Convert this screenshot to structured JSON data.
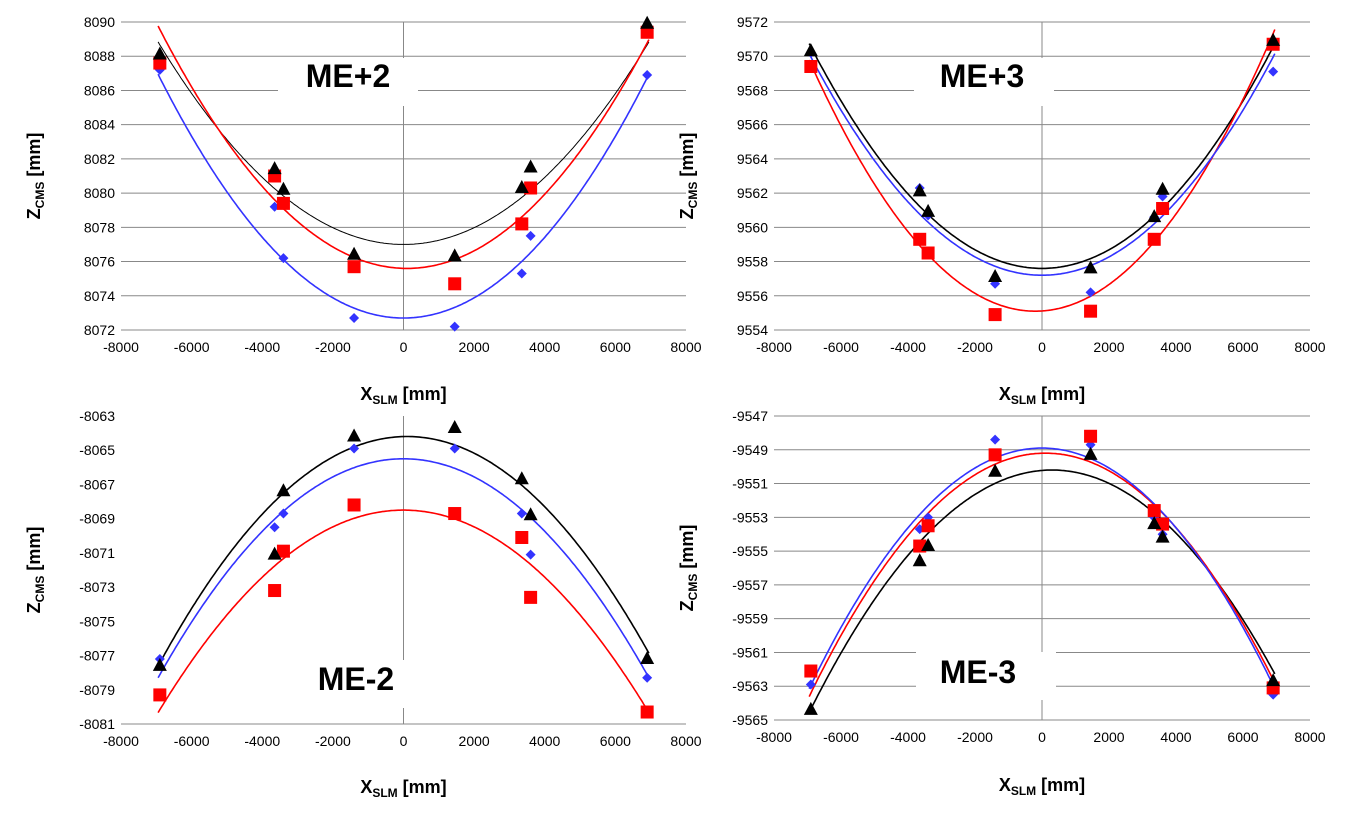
{
  "colors": {
    "black_series": "#000000",
    "red_series": "#ff0000",
    "blue_series": "#3333ff",
    "grid": "#888888",
    "axis": "#888888"
  },
  "chart_data": [
    {
      "type": "scatter",
      "title": "ME+2",
      "xlabel_main": "X",
      "xlabel_sub": "SLM",
      "xlabel_unit": "[mm]",
      "ylabel_main": "Z",
      "ylabel_sub": "CMS",
      "ylabel_unit": "[mm]",
      "xlim": [
        -8000,
        8000
      ],
      "ylim": [
        8072,
        8090
      ],
      "xticks": [
        -8000,
        -6000,
        -4000,
        -2000,
        0,
        2000,
        4000,
        6000,
        8000
      ],
      "yticks": [
        8072,
        8074,
        8076,
        8078,
        8080,
        8082,
        8084,
        8086,
        8088,
        8090
      ],
      "grid": "horizontal",
      "show_xlabel": true,
      "series": [
        {
          "marker": "triangle",
          "color": "#000000",
          "x": [
            -6900,
            -3650,
            -3400,
            -1400,
            1450,
            3350,
            3600,
            6900
          ],
          "y": [
            8088.1,
            8081.4,
            8080.2,
            8076.4,
            8076.3,
            8080.3,
            8081.5,
            8089.9
          ],
          "fit": {
            "a": 2.45e-07,
            "x0": 0,
            "y0": 8077.0
          }
        },
        {
          "marker": "square",
          "color": "#ff0000",
          "x": [
            -6900,
            -3650,
            -3400,
            -1400,
            1450,
            3350,
            3600,
            6900
          ],
          "y": [
            8087.6,
            8081.0,
            8079.4,
            8075.7,
            8074.7,
            8078.2,
            8080.3,
            8089.4
          ],
          "fit": {
            "a": 2.85e-07,
            "x0": 100,
            "y0": 8075.6
          }
        },
        {
          "marker": "diamond",
          "color": "#3333ff",
          "x": [
            -6900,
            -3650,
            -3400,
            -1400,
            1450,
            3350,
            3600,
            6900
          ],
          "y": [
            8087.2,
            8079.2,
            8076.2,
            8072.7,
            8072.2,
            8075.3,
            8077.5,
            8086.9
          ],
          "fit": {
            "a": 2.95e-07,
            "x0": 0,
            "y0": 8072.7
          }
        }
      ]
    },
    {
      "type": "scatter",
      "title": "ME+3",
      "xlabel_main": "X",
      "xlabel_sub": "SLM",
      "xlabel_unit": "[mm]",
      "ylabel_main": "Z",
      "ylabel_sub": "CMS",
      "ylabel_unit": "[mm]",
      "xlim": [
        -8000,
        8000
      ],
      "ylim": [
        9554,
        9572
      ],
      "xticks": [
        -8000,
        -6000,
        -4000,
        -2000,
        0,
        2000,
        4000,
        6000,
        8000
      ],
      "yticks": [
        9554,
        9556,
        9558,
        9560,
        9562,
        9564,
        9566,
        9568,
        9570,
        9572
      ],
      "grid": "horizontal",
      "show_xlabel": true,
      "series": [
        {
          "marker": "triangle",
          "color": "#000000",
          "x": [
            -6900,
            -3650,
            -3400,
            -1400,
            1450,
            3350,
            3600,
            6900
          ],
          "y": [
            9570.3,
            9562.1,
            9560.9,
            9557.1,
            9557.6,
            9560.6,
            9562.2,
            9570.9
          ],
          "fit": {
            "a": 2.72e-07,
            "x0": 0,
            "y0": 9557.6
          }
        },
        {
          "marker": "square",
          "color": "#ff0000",
          "x": [
            -6900,
            -3650,
            -3400,
            -1400,
            1450,
            3350,
            3600,
            6900
          ],
          "y": [
            9569.4,
            9559.3,
            9558.5,
            9554.9,
            9555.1,
            9559.3,
            9561.1,
            9570.7
          ],
          "fit": {
            "a": 3.22e-07,
            "x0": -200,
            "y0": 9555.1
          }
        },
        {
          "marker": "diamond",
          "color": "#3333ff",
          "x": [
            -6900,
            -3650,
            -3400,
            -1400,
            1450,
            3350,
            3600,
            6900
          ],
          "y": [
            9570.2,
            9562.3,
            9560.7,
            9556.7,
            9556.2,
            9560.6,
            9561.8,
            9569.1
          ],
          "fit": {
            "a": 2.68e-07,
            "x0": 0,
            "y0": 9557.2
          }
        }
      ]
    },
    {
      "type": "scatter",
      "title": "ME-2",
      "xlabel_main": "X",
      "xlabel_sub": "SLM",
      "xlabel_unit": "[mm]",
      "ylabel_main": "Z",
      "ylabel_sub": "CMS",
      "ylabel_unit": "[mm]",
      "xlim": [
        -8000,
        8000
      ],
      "ylim": [
        -8081,
        -8063
      ],
      "xticks": [
        -8000,
        -6000,
        -4000,
        -2000,
        0,
        2000,
        4000,
        6000,
        8000
      ],
      "yticks": [
        -8063,
        -8065,
        -8067,
        -8069,
        -8071,
        -8073,
        -8075,
        -8077,
        -8079,
        -8081
      ],
      "grid": "none",
      "show_xlabel": true,
      "series": [
        {
          "marker": "triangle",
          "color": "#000000",
          "x": [
            -6900,
            -3650,
            -3400,
            -1400,
            1450,
            3350,
            3600,
            6900
          ],
          "y": [
            -8077.6,
            -8071.1,
            -8067.4,
            -8064.2,
            -8063.7,
            -8066.7,
            -8068.8,
            -8077.2
          ],
          "fit": {
            "a": -2.7e-07,
            "x0": 100,
            "y0": -8064.2
          }
        },
        {
          "marker": "square",
          "color": "#ff0000",
          "x": [
            -6900,
            -3650,
            -3400,
            -1400,
            1450,
            3350,
            3600,
            6900
          ],
          "y": [
            -8079.3,
            -8073.2,
            -8070.9,
            -8068.2,
            -8068.7,
            -8070.1,
            -8073.6,
            -8080.3
          ],
          "fit": {
            "a": -2.45e-07,
            "x0": 0,
            "y0": -8068.5
          }
        },
        {
          "marker": "diamond",
          "color": "#3333ff",
          "x": [
            -6900,
            -3650,
            -3400,
            -1400,
            1450,
            3350,
            3600,
            6900
          ],
          "y": [
            -8077.2,
            -8069.5,
            -8068.7,
            -8064.9,
            -8064.9,
            -8068.7,
            -8071.1,
            -8078.3
          ],
          "fit": {
            "a": -2.65e-07,
            "x0": 0,
            "y0": -8065.5
          }
        }
      ]
    },
    {
      "type": "scatter",
      "title": "ME-3",
      "xlabel_main": "X",
      "xlabel_sub": "SLM",
      "xlabel_unit": "[mm]",
      "ylabel_main": "Z",
      "ylabel_sub": "CMS",
      "ylabel_unit": "[mm]",
      "xlim": [
        -8000,
        8000
      ],
      "ylim": [
        -9565,
        -9547
      ],
      "xticks": [
        -8000,
        -6000,
        -4000,
        -2000,
        0,
        2000,
        4000,
        6000,
        8000
      ],
      "yticks": [
        -9547,
        -9549,
        -9551,
        -9553,
        -9555,
        -9557,
        -9559,
        -9561,
        -9563,
        -9565
      ],
      "grid": "horizontal",
      "show_xlabel": true,
      "series": [
        {
          "marker": "triangle",
          "color": "#000000",
          "x": [
            -6900,
            -3650,
            -3400,
            -1400,
            1450,
            3350,
            3600,
            6900
          ],
          "y": [
            -9564.4,
            -9555.6,
            -9554.7,
            -9550.3,
            -9549.3,
            -9553.4,
            -9554.2,
            -9562.7
          ],
          "fit": {
            "a": -2.73e-07,
            "x0": 300,
            "y0": -9550.2
          }
        },
        {
          "marker": "square",
          "color": "#ff0000",
          "x": [
            -6900,
            -3650,
            -3400,
            -1400,
            1450,
            3350,
            3600,
            6900
          ],
          "y": [
            -9562.1,
            -9554.7,
            -9553.5,
            -9549.3,
            -9548.2,
            -9552.6,
            -9553.4,
            -9563.1
          ],
          "fit": {
            "a": -2.9e-07,
            "x0": 100,
            "y0": -9549.2
          }
        },
        {
          "marker": "diamond",
          "color": "#3333ff",
          "x": [
            -6900,
            -3650,
            -3400,
            -1400,
            1450,
            3350,
            3600,
            6900
          ],
          "y": [
            -9562.9,
            -9553.7,
            -9553.0,
            -9548.4,
            -9548.7,
            -9553.0,
            -9554.0,
            -9563.5
          ],
          "fit": {
            "a": -2.95e-07,
            "x0": 0,
            "y0": -9548.9
          }
        }
      ]
    }
  ]
}
